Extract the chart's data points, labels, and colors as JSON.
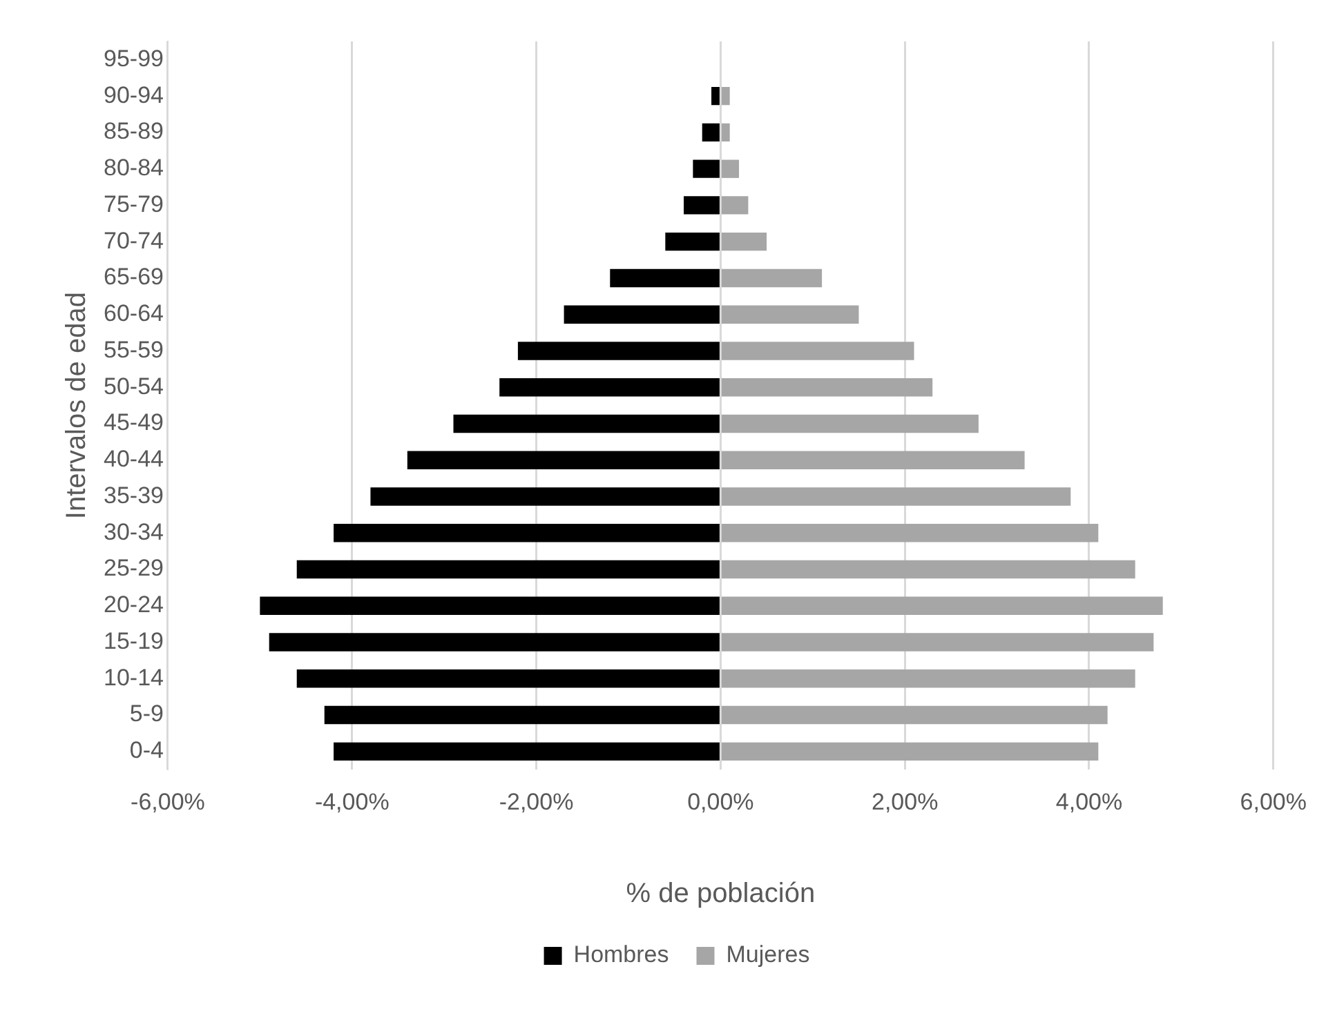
{
  "chart_data": {
    "type": "bar",
    "orientation": "horizontal",
    "stacked": true,
    "xlabel": "% de población",
    "ylabel": "Intervalos de edad",
    "categories": [
      "95-99",
      "90-94",
      "85-89",
      "80-84",
      "75-79",
      "70-74",
      "65-69",
      "60-64",
      "55-59",
      "50-54",
      "45-49",
      "40-44",
      "35-39",
      "30-34",
      "25-29",
      "20-24",
      "15-19",
      "10-14",
      "5-9",
      "0-4"
    ],
    "series": [
      {
        "name": "Hombres",
        "color": "#000000",
        "values": [
          0,
          -0.1,
          -0.2,
          -0.3,
          -0.4,
          -0.6,
          -1.2,
          -1.7,
          -2.2,
          -2.4,
          -2.9,
          -3.4,
          -3.8,
          -4.2,
          -4.6,
          -5.0,
          -4.9,
          -4.6,
          -4.3,
          -4.2
        ]
      },
      {
        "name": "Mujeres",
        "color": "#a6a6a6",
        "values": [
          0,
          0.1,
          0.1,
          0.2,
          0.3,
          0.5,
          1.1,
          1.5,
          2.1,
          2.3,
          2.8,
          3.3,
          3.8,
          4.1,
          4.5,
          4.8,
          4.7,
          4.5,
          4.2,
          4.1
        ]
      }
    ],
    "xlim": [
      -6,
      6
    ],
    "xticks": [
      {
        "value": -6,
        "label": "-6,00%"
      },
      {
        "value": -4,
        "label": "-4,00%"
      },
      {
        "value": -2,
        "label": "-2,00%"
      },
      {
        "value": 0,
        "label": "0,00%"
      },
      {
        "value": 2,
        "label": "2,00%"
      },
      {
        "value": 4,
        "label": "4,00%"
      },
      {
        "value": 6,
        "label": "6,00%"
      }
    ],
    "grid": "x",
    "legend": "bottom"
  }
}
